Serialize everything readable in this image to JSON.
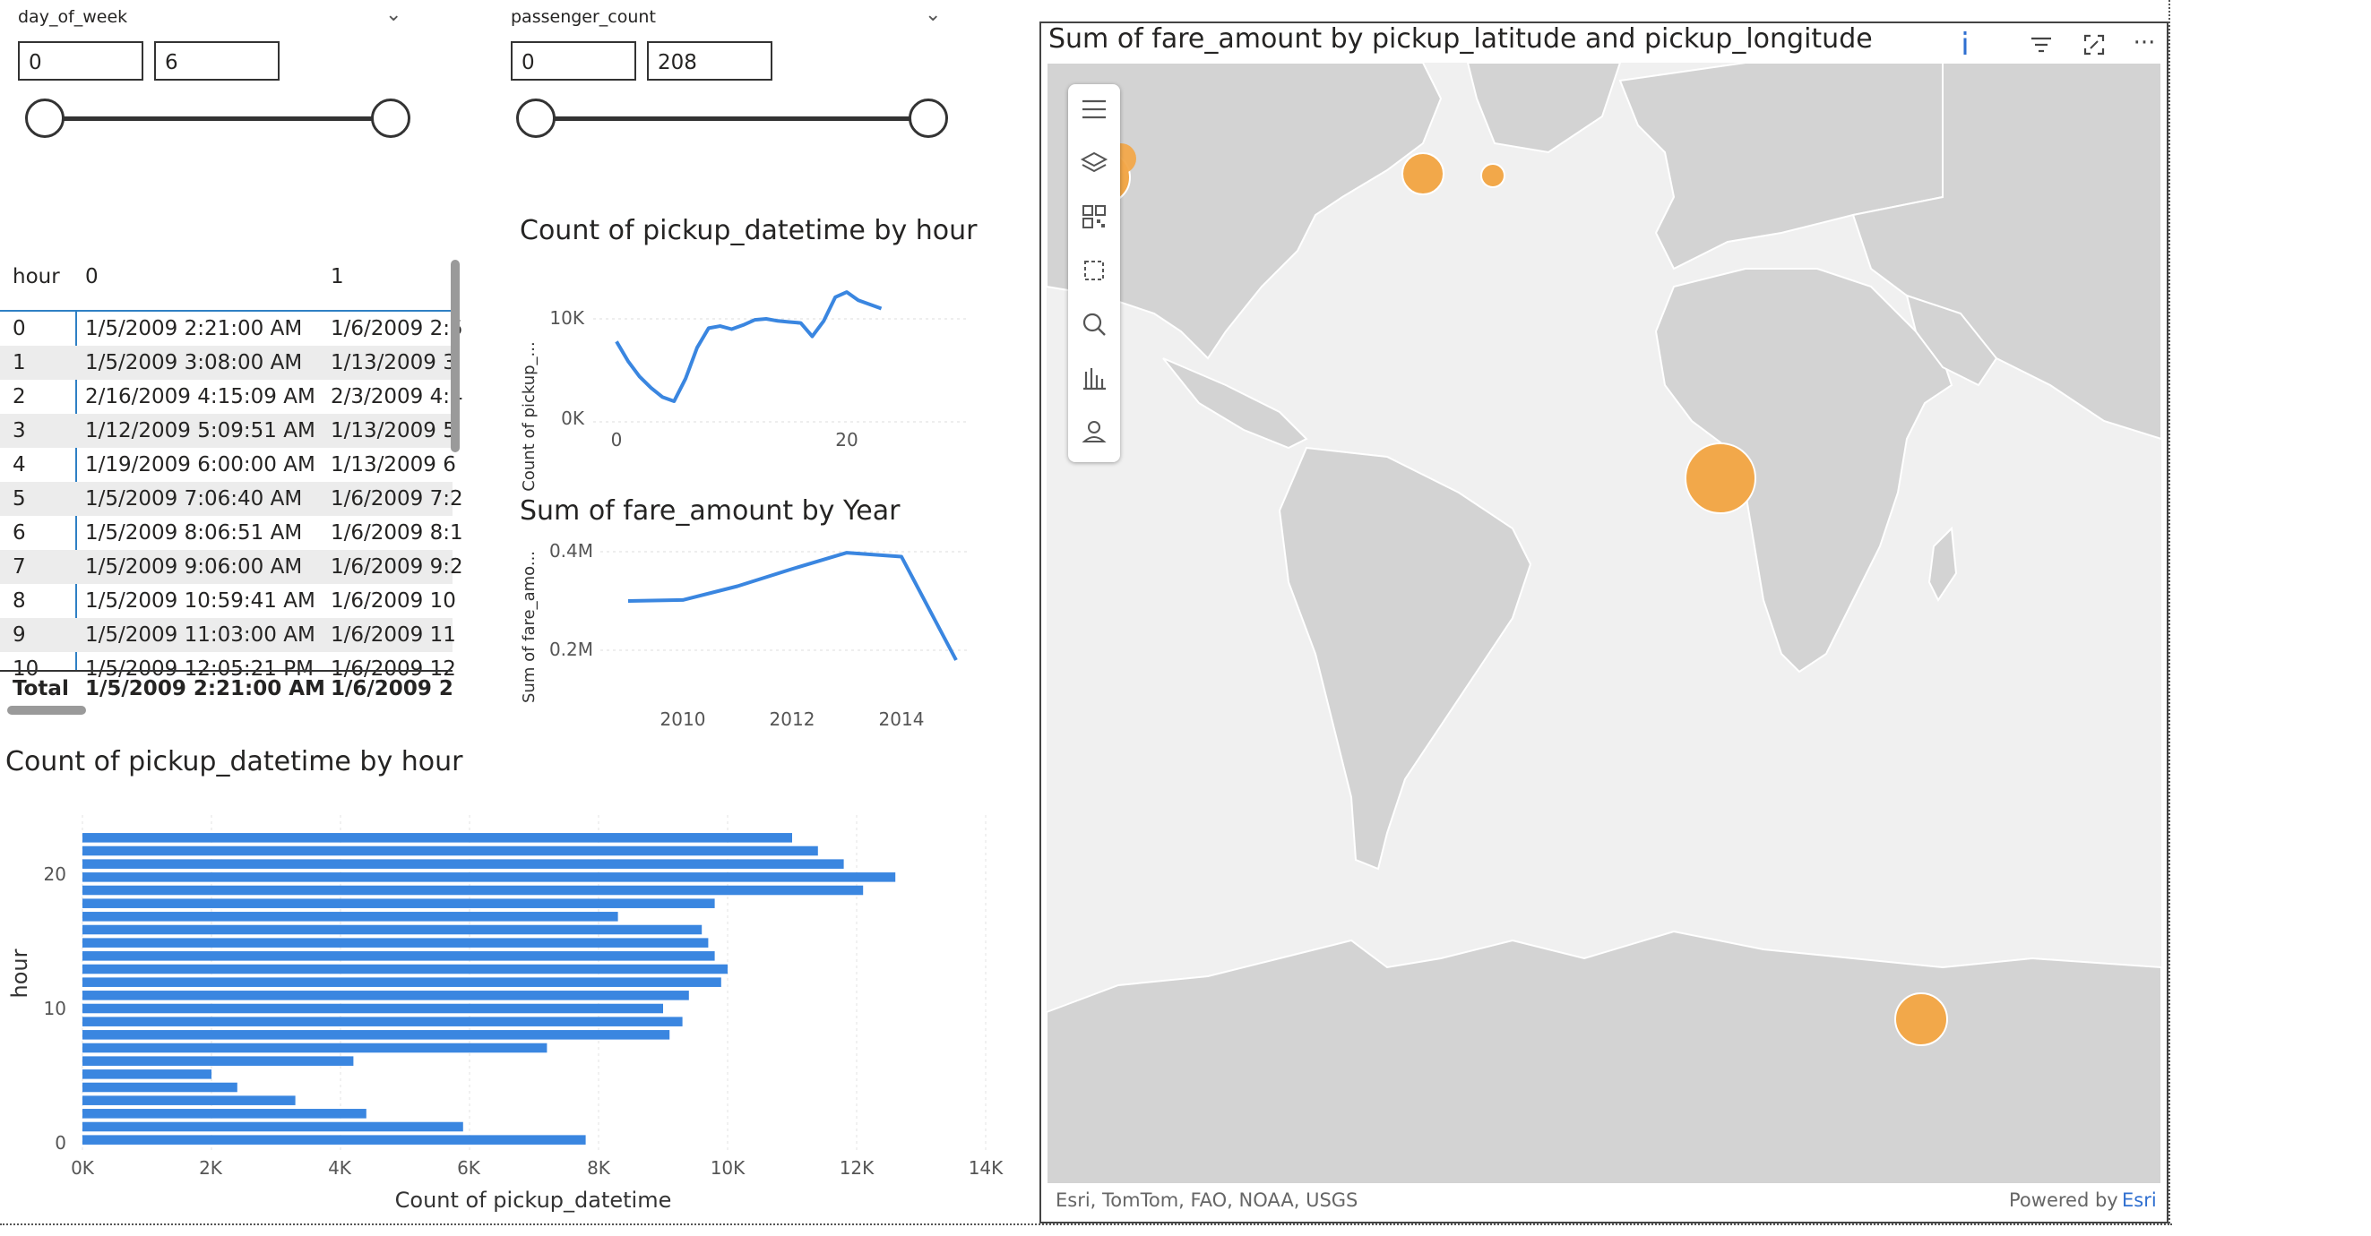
{
  "slicers": [
    {
      "title": "day_of_week",
      "min": "0",
      "max": "6"
    },
    {
      "title": "passenger_count",
      "min": "0",
      "max": "208"
    }
  ],
  "matrix": {
    "headers": [
      "hour",
      "0",
      "1"
    ],
    "rows": [
      [
        "0",
        "1/5/2009 2:21:00 AM",
        "1/6/2009 2:5"
      ],
      [
        "1",
        "1/5/2009 3:08:00 AM",
        "1/13/2009 3"
      ],
      [
        "2",
        "2/16/2009 4:15:09 AM",
        "2/3/2009 4:4"
      ],
      [
        "3",
        "1/12/2009 5:09:51 AM",
        "1/13/2009 5"
      ],
      [
        "4",
        "1/19/2009 6:00:00 AM",
        "1/13/2009 6"
      ],
      [
        "5",
        "1/5/2009 7:06:40 AM",
        "1/6/2009 7:2"
      ],
      [
        "6",
        "1/5/2009 8:06:51 AM",
        "1/6/2009 8:1"
      ],
      [
        "7",
        "1/5/2009 9:06:00 AM",
        "1/6/2009 9:2"
      ],
      [
        "8",
        "1/5/2009 10:59:41 AM",
        "1/6/2009 10"
      ],
      [
        "9",
        "1/5/2009 11:03:00 AM",
        "1/6/2009 11"
      ],
      [
        "10",
        "1/5/2009 12:05:21 PM",
        "1/6/2009 12"
      ]
    ],
    "total": [
      "Total",
      "1/5/2009 2:21:00 AM",
      "1/6/2009 2"
    ]
  },
  "line_hour": {
    "title": "Count of pickup_datetime by hour",
    "ylabel": "Count of pickup_...",
    "yticks": [
      "10K",
      "0K"
    ],
    "xticks": [
      "0",
      "20"
    ]
  },
  "line_year": {
    "title": "Sum of fare_amount by Year",
    "ylabel": "Sum of fare_amo...",
    "yticks": [
      "0.4M",
      "0.2M"
    ],
    "xticks": [
      "2010",
      "2012",
      "2014"
    ]
  },
  "bar_hour": {
    "title": "Count of pickup_datetime by hour",
    "ylabel": "hour",
    "xlabel": "Count of pickup_datetime",
    "xticks": [
      "0K",
      "2K",
      "4K",
      "6K",
      "8K",
      "10K",
      "12K",
      "14K"
    ],
    "yticks": [
      "20",
      "10",
      "0"
    ]
  },
  "map": {
    "title": "Sum of fare_amount by pickup_latitude and pickup_longitude",
    "attribution": "Esri, TomTom, FAO, NOAA, USGS",
    "powered_by": "Powered by",
    "esri": "Esri",
    "info_glyph": "i",
    "more_glyph": "···",
    "tool_icons": [
      "menu-icon",
      "layers-icon",
      "qr-code-icon",
      "select-icon",
      "search-icon",
      "bar-chart-icon",
      "person-icon"
    ],
    "bubble_color": "#f2a84a"
  },
  "chart_data": [
    {
      "type": "line",
      "title": "Count of pickup_datetime by hour",
      "xlabel": "",
      "ylabel": "Count of pickup_...",
      "x": [
        0,
        1,
        2,
        3,
        4,
        5,
        6,
        7,
        8,
        9,
        10,
        11,
        12,
        13,
        14,
        15,
        16,
        17,
        18,
        19,
        20,
        21,
        22,
        23
      ],
      "series": [
        {
          "values": [
            7800,
            5900,
            4400,
            3300,
            2400,
            2000,
            4200,
            7200,
            9100,
            9300,
            9000,
            9400,
            9900,
            10000,
            9800,
            9700,
            9600,
            8300,
            9800,
            12100,
            12600,
            11800,
            11400,
            11000
          ]
        }
      ],
      "xlim": [
        0,
        23
      ],
      "ylim": [
        0,
        13000
      ]
    },
    {
      "type": "line",
      "title": "Sum of fare_amount by Year",
      "xlabel": "",
      "ylabel": "Sum of fare_amo...",
      "x": [
        2009,
        2010,
        2011,
        2012,
        2013,
        2014,
        2015
      ],
      "series": [
        {
          "values": [
            300000,
            302000,
            330000,
            365000,
            398000,
            390000,
            180000
          ]
        }
      ],
      "ylim": [
        0.15,
        0.42
      ]
    },
    {
      "type": "bar",
      "orientation": "horizontal",
      "title": "Count of pickup_datetime by hour",
      "xlabel": "Count of pickup_datetime",
      "ylabel": "hour",
      "categories": [
        0,
        1,
        2,
        3,
        4,
        5,
        6,
        7,
        8,
        9,
        10,
        11,
        12,
        13,
        14,
        15,
        16,
        17,
        18,
        19,
        20,
        21,
        22,
        23
      ],
      "values": [
        7800,
        5900,
        4400,
        3300,
        2400,
        2000,
        4200,
        7200,
        9100,
        9300,
        9000,
        9400,
        9900,
        10000,
        9800,
        9700,
        9600,
        8300,
        9800,
        12100,
        12600,
        11800,
        11400,
        11000
      ],
      "xlim": [
        0,
        14000
      ]
    }
  ]
}
